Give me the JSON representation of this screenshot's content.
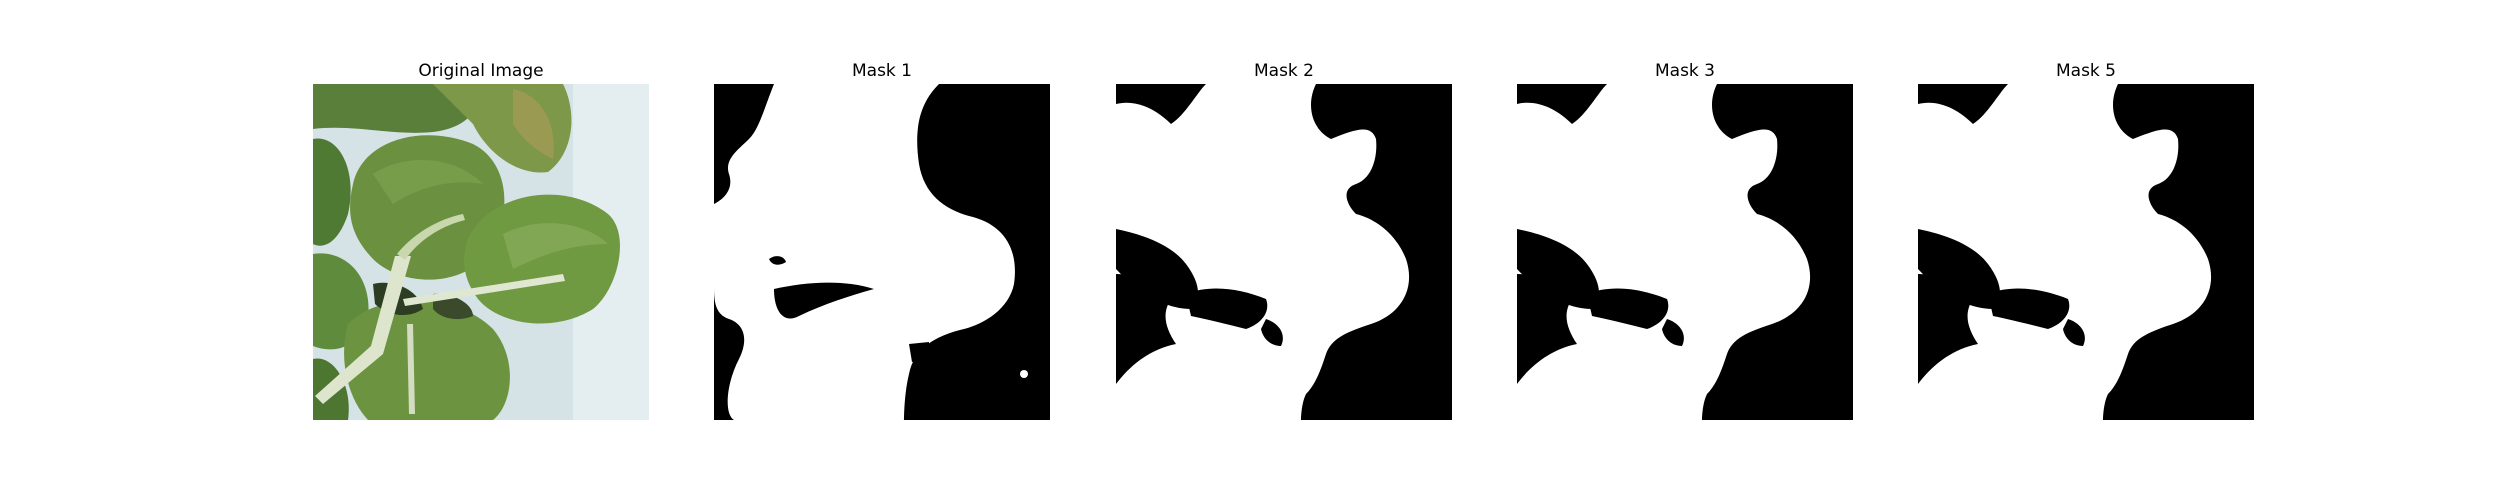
{
  "panels": [
    {
      "title": "Original Image",
      "kind": "photo"
    },
    {
      "title": "Mask 1",
      "kind": "mask"
    },
    {
      "title": "Mask 2",
      "kind": "mask"
    },
    {
      "title": "Mask 3",
      "kind": "mask"
    },
    {
      "title": "Mask 5",
      "kind": "mask"
    }
  ],
  "colors": {
    "background": "#ffffff",
    "mask_foreground": "#ffffff",
    "mask_background": "#000000",
    "leaf_dark": "#3f6a2a",
    "leaf_mid": "#5f8a3c",
    "leaf_light": "#86a95a",
    "stem": "#dfe6cf",
    "tray": "#d5e2e4"
  }
}
